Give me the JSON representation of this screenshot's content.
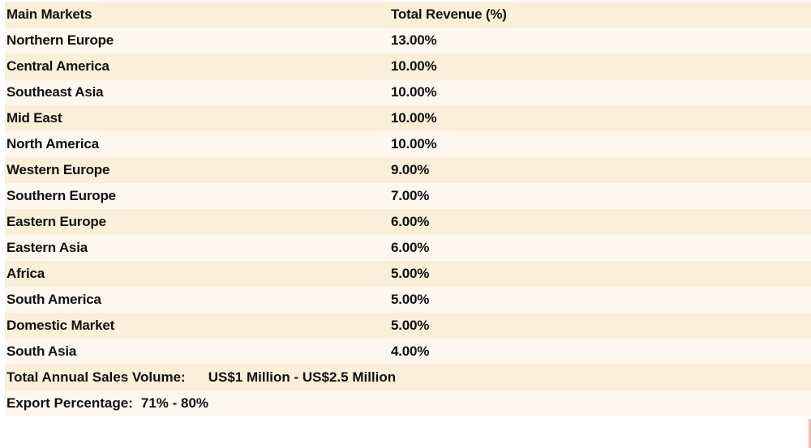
{
  "table": {
    "header": {
      "col1": "Main Markets",
      "col2": "Total Revenue (%)"
    },
    "rows": [
      {
        "market": "Northern Europe",
        "revenue": "13.00%"
      },
      {
        "market": "Central America",
        "revenue": "10.00%"
      },
      {
        "market": "Southeast Asia",
        "revenue": "10.00%"
      },
      {
        "market": "Mid East",
        "revenue": "10.00%"
      },
      {
        "market": "North America",
        "revenue": "10.00%"
      },
      {
        "market": "Western Europe",
        "revenue": "9.00%"
      },
      {
        "market": "Southern Europe",
        "revenue": "7.00%"
      },
      {
        "market": "Eastern Europe",
        "revenue": "6.00%"
      },
      {
        "market": "Eastern Asia",
        "revenue": "6.00%"
      },
      {
        "market": "Africa",
        "revenue": "5.00%"
      },
      {
        "market": "South America",
        "revenue": "5.00%"
      },
      {
        "market": "Domestic Market",
        "revenue": "5.00%"
      },
      {
        "market": "South Asia",
        "revenue": "4.00%"
      }
    ]
  },
  "summary": {
    "sales_label": "Total Annual Sales Volume:",
    "sales_value": "US$1 Million - US$2.5 Million",
    "export_label": "Export Percentage:",
    "export_value": "71% - 80%"
  },
  "colors": {
    "row_dark": "#fbeeda",
    "row_light": "#fdf7ee",
    "text": "#111111"
  }
}
